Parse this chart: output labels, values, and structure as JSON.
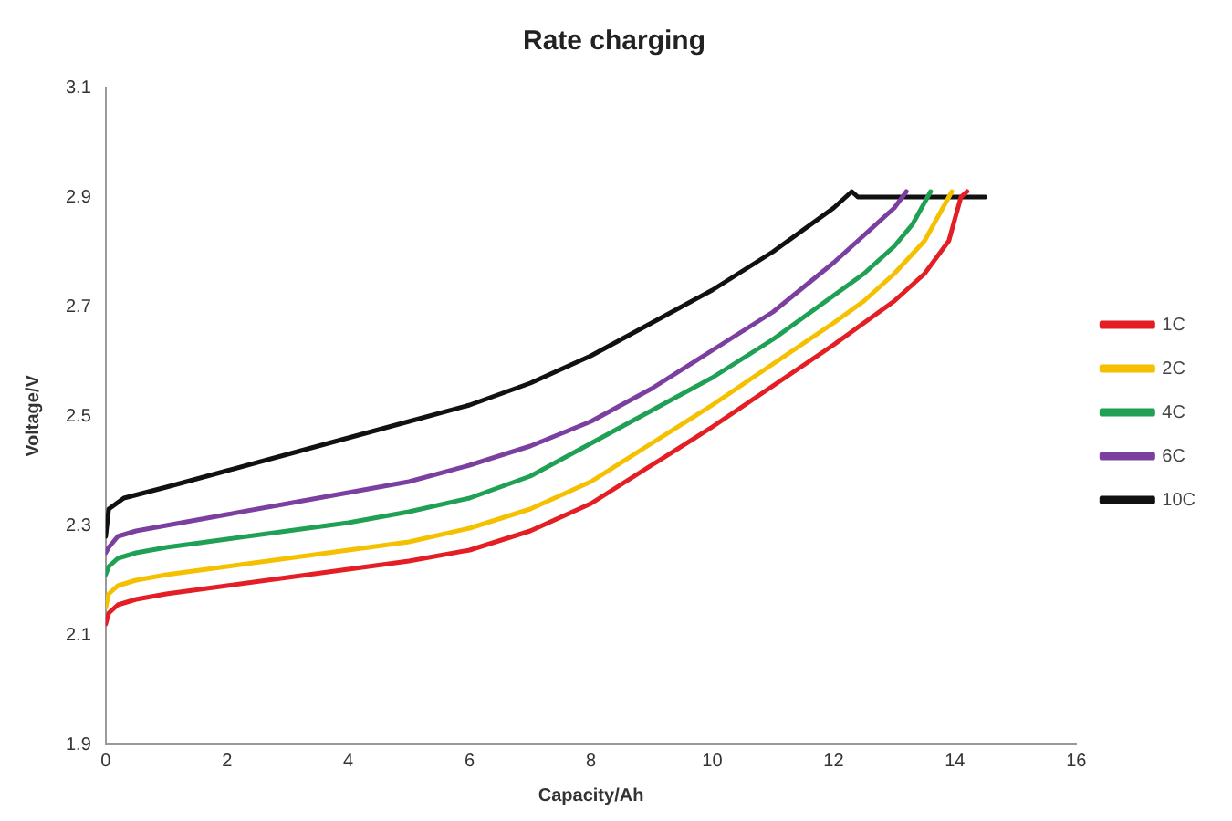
{
  "chart_data": {
    "type": "line",
    "title": "Rate charging",
    "xlabel": "Capacity/Ah",
    "ylabel": "Voltage/V",
    "xlim": [
      0,
      16
    ],
    "xticks": [
      0,
      2,
      4,
      6,
      8,
      10,
      12,
      14,
      16
    ],
    "ylim": [
      1.9,
      3.1
    ],
    "yticks": [
      1.9,
      2.1,
      2.3,
      2.5,
      2.7,
      2.9,
      3.1
    ],
    "grid": false,
    "legend": "right",
    "marker": "none",
    "line_style": "solid",
    "series": [
      {
        "name": "1C",
        "color": "#e31e24",
        "x": [
          0,
          0.05,
          0.2,
          0.5,
          1,
          2,
          3,
          4,
          5,
          6,
          7,
          8,
          9,
          10,
          11,
          12,
          12.5,
          13,
          13.5,
          13.9,
          14.1,
          14.2
        ],
        "values": [
          2.12,
          2.14,
          2.155,
          2.165,
          2.175,
          2.19,
          2.205,
          2.22,
          2.235,
          2.255,
          2.29,
          2.34,
          2.41,
          2.48,
          2.555,
          2.63,
          2.67,
          2.71,
          2.76,
          2.82,
          2.9,
          2.91
        ]
      },
      {
        "name": "2C",
        "color": "#f5c000",
        "x": [
          0,
          0.05,
          0.2,
          0.5,
          1,
          2,
          3,
          4,
          5,
          6,
          7,
          8,
          9,
          10,
          11,
          12,
          12.5,
          13,
          13.5,
          13.8,
          13.95
        ],
        "values": [
          2.15,
          2.175,
          2.19,
          2.2,
          2.21,
          2.225,
          2.24,
          2.255,
          2.27,
          2.295,
          2.33,
          2.38,
          2.45,
          2.52,
          2.595,
          2.67,
          2.71,
          2.76,
          2.82,
          2.88,
          2.91
        ]
      },
      {
        "name": "4C",
        "color": "#1fa055",
        "x": [
          0,
          0.05,
          0.2,
          0.5,
          1,
          2,
          3,
          4,
          5,
          6,
          7,
          8,
          9,
          10,
          11,
          12,
          12.5,
          13,
          13.3,
          13.5,
          13.6
        ],
        "values": [
          2.21,
          2.225,
          2.24,
          2.25,
          2.26,
          2.275,
          2.29,
          2.305,
          2.325,
          2.35,
          2.39,
          2.45,
          2.51,
          2.57,
          2.64,
          2.72,
          2.76,
          2.81,
          2.85,
          2.89,
          2.91
        ]
      },
      {
        "name": "6C",
        "color": "#7b3fa0",
        "x": [
          0,
          0.05,
          0.2,
          0.5,
          1,
          2,
          3,
          4,
          5,
          6,
          7,
          8,
          9,
          10,
          11,
          12,
          12.5,
          13,
          13.2
        ],
        "values": [
          2.25,
          2.26,
          2.28,
          2.29,
          2.3,
          2.32,
          2.34,
          2.36,
          2.38,
          2.41,
          2.445,
          2.49,
          2.55,
          2.62,
          2.69,
          2.78,
          2.83,
          2.88,
          2.91
        ]
      },
      {
        "name": "10C",
        "color": "#111111",
        "x": [
          0,
          0.05,
          0.3,
          1,
          2,
          3,
          4,
          5,
          6,
          7,
          8,
          9,
          10,
          11,
          12,
          12.3,
          12.4,
          14.5
        ],
        "values": [
          2.28,
          2.33,
          2.35,
          2.37,
          2.4,
          2.43,
          2.46,
          2.49,
          2.52,
          2.56,
          2.61,
          2.67,
          2.73,
          2.8,
          2.88,
          2.91,
          2.9,
          2.9
        ]
      }
    ]
  }
}
